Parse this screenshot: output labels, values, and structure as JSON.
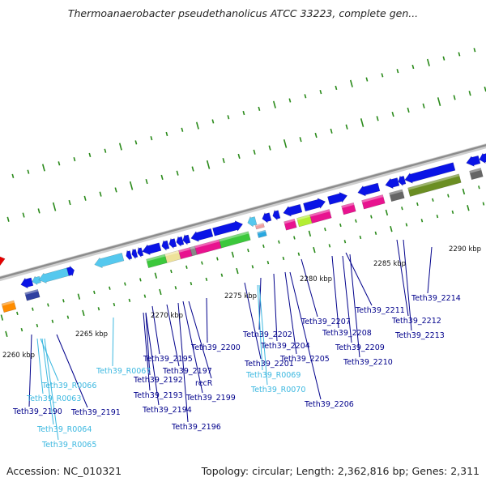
{
  "title": "Thermoanaerobacter pseudethanolicus ATCC 33223, complete gen...",
  "footer": {
    "accession": "Accession: NC_010321",
    "summary": "Topology: circular; Length: 2,362,816 bp; Genes: 2,311"
  },
  "colors": {
    "cds": "#0a14e6",
    "rna": "#55c8ee",
    "label_cds": "#00008b",
    "label_rna": "#3cb8e0",
    "tick": "#2a8a1a",
    "backbone": "#8c8c8c"
  },
  "kbp_labels": [
    "2260 kbp",
    "2265 kbp",
    "2270 kbp",
    "2275 kbp",
    "2280 kbp",
    "2285 kbp",
    "2290 kbp"
  ],
  "gene_labels": [
    {
      "text": "Teth39_2214",
      "type": "cds"
    },
    {
      "text": "Teth39_2211",
      "type": "cds"
    },
    {
      "text": "Teth39_2212",
      "type": "cds"
    },
    {
      "text": "Teth39_2213",
      "type": "cds"
    },
    {
      "text": "Teth39_2207",
      "type": "cds"
    },
    {
      "text": "Teth39_2208",
      "type": "cds"
    },
    {
      "text": "Teth39_2209",
      "type": "cds"
    },
    {
      "text": "Teth39_2210",
      "type": "cds"
    },
    {
      "text": "Teth39_2202",
      "type": "cds"
    },
    {
      "text": "Teth39_2204",
      "type": "cds"
    },
    {
      "text": "Teth39_2205",
      "type": "cds"
    },
    {
      "text": "Teth39_2206",
      "type": "cds"
    },
    {
      "text": "Teth39_2200",
      "type": "cds"
    },
    {
      "text": "Teth39_2201",
      "type": "cds"
    },
    {
      "text": "Teth39_R0069",
      "type": "rna"
    },
    {
      "text": "Teth39_R0070",
      "type": "rna"
    },
    {
      "text": "Teth39_2195",
      "type": "cds"
    },
    {
      "text": "Teth39_R0067",
      "type": "rna"
    },
    {
      "text": "Teth39_2197",
      "type": "cds"
    },
    {
      "text": "Teth39_2192",
      "type": "cds"
    },
    {
      "text": "recR",
      "type": "cds"
    },
    {
      "text": "Teth39_2193",
      "type": "cds"
    },
    {
      "text": "Teth39_2199",
      "type": "cds"
    },
    {
      "text": "Teth39_2194",
      "type": "cds"
    },
    {
      "text": "Teth39_2196",
      "type": "cds"
    },
    {
      "text": "Teth39_R0066",
      "type": "rna"
    },
    {
      "text": "Teth39_R0063",
      "type": "rna"
    },
    {
      "text": "Teth39_2190",
      "type": "cds"
    },
    {
      "text": "Teth39_2191",
      "type": "cds"
    },
    {
      "text": "Teth39_R0064",
      "type": "rna"
    },
    {
      "text": "Teth39_R0065",
      "type": "rna"
    }
  ]
}
